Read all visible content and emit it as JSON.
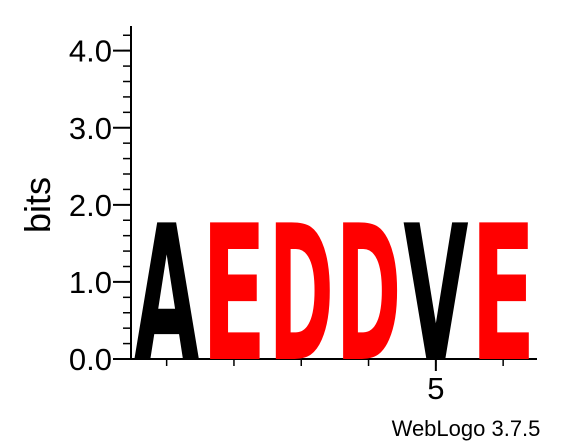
{
  "chart_data": {
    "type": "sequence-logo",
    "ylabel": "bits",
    "ylim": [
      0,
      4.32
    ],
    "y_ticks": [
      {
        "value": 0,
        "label": "0.0"
      },
      {
        "value": 1,
        "label": "1.0"
      },
      {
        "value": 2,
        "label": "2.0"
      },
      {
        "value": 3,
        "label": "3.0"
      },
      {
        "value": 4,
        "label": "4.0"
      }
    ],
    "y_minor_step": 0.2,
    "x_tick_labels": [
      {
        "position": 5,
        "label": "5"
      }
    ],
    "positions": [
      {
        "index": 1,
        "letter": "A",
        "bits": 1.75,
        "color": "#000000"
      },
      {
        "index": 2,
        "letter": "E",
        "bits": 1.75,
        "color": "#ff0000"
      },
      {
        "index": 3,
        "letter": "D",
        "bits": 1.75,
        "color": "#ff0000"
      },
      {
        "index": 4,
        "letter": "D",
        "bits": 1.75,
        "color": "#ff0000"
      },
      {
        "index": 5,
        "letter": "V",
        "bits": 1.75,
        "color": "#000000"
      },
      {
        "index": 6,
        "letter": "E",
        "bits": 1.75,
        "color": "#ff0000"
      }
    ],
    "footer": "WebLogo 3.7.5"
  }
}
